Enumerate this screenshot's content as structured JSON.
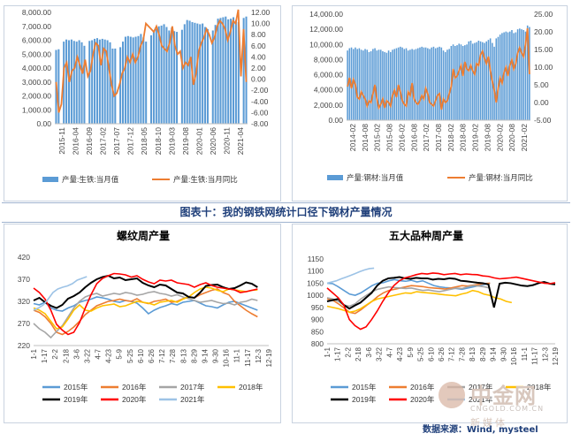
{
  "caption": "图表十：我的钢铁网统计口径下钢材产量情况",
  "source": "数据来源：Wind, mysteel",
  "watermark": {
    "brand": "中金网",
    "url": "CNGOLD.COM.CN",
    "sub": "新媒体"
  },
  "colors": {
    "bar": "#5b9bd5",
    "line": "#ed7d31"
  },
  "chart_data": [
    {
      "type": "bar+line",
      "title": "",
      "x_tick_labels": [
        "2015-11",
        "2016-04",
        "2016-09",
        "2017-02",
        "2017-07",
        "2017-12",
        "2018-05",
        "2018-10",
        "2019-03",
        "2019-08",
        "2020-01",
        "2020-06",
        "2020-11",
        "2021-04"
      ],
      "ylim_left": [
        0,
        8000
      ],
      "yticks_left": [
        "0.00",
        "1,000.00",
        "2,000.00",
        "3,000.00",
        "4,000.00",
        "5,000.00",
        "6,000.00",
        "7,000.00",
        "8,000.00"
      ],
      "ylim_right": [
        -8,
        12
      ],
      "yticks_right": [
        "-8.00",
        "-6.00",
        "-4.00",
        "-2.00",
        "0.00",
        "2.00",
        "4.00",
        "6.00",
        "8.00",
        "10.00",
        "12.00"
      ],
      "series": [
        {
          "name": "产量:生铁:当月值",
          "kind": "bar",
          "axis": "left",
          "values": [
            5300,
            5350,
            0,
            5900,
            6050,
            6000,
            6050,
            5950,
            5900,
            6000,
            5850,
            5600,
            0,
            5950,
            6000,
            6100,
            6150,
            6050,
            6100,
            6050,
            6000,
            5850,
            5400,
            5400,
            0,
            5500,
            5900,
            6250,
            6300,
            6250,
            6200,
            6250,
            6300,
            6450,
            6200,
            5900,
            0,
            6350,
            6600,
            6800,
            7000,
            7050,
            7150,
            6950,
            6700,
            6900,
            6650,
            6600,
            0,
            6750,
            7150,
            7450,
            7400,
            7300,
            7250,
            7200,
            7150,
            7200,
            6950,
            6800,
            0,
            6700,
            7100,
            7550,
            7600,
            7650,
            7700,
            7500,
            7550,
            7650,
            7450,
            7300,
            0,
            7600,
            7700
          ]
        },
        {
          "name": "产量:生铁:当月同比",
          "kind": "line",
          "axis": "right",
          "values": [
            -0.5,
            -6.0,
            -4.5,
            2.0,
            3.0,
            -0.5,
            1.5,
            2.0,
            4.0,
            2.5,
            1.0,
            3.5,
            0.5,
            1.5,
            4.5,
            6.5,
            6.0,
            2.5,
            5.5,
            5.0,
            2.0,
            -1.0,
            -3.0,
            -2.5,
            -1.0,
            1.0,
            2.0,
            4.0,
            3.0,
            4.5,
            3.0,
            4.0,
            6.0,
            7.0,
            10.0,
            9.5,
            9.0,
            8.5,
            9.5,
            8.0,
            6.0,
            5.5,
            5.0,
            6.5,
            9.5,
            6.0,
            4.5,
            5.0,
            2.0,
            3.0,
            2.5,
            4.0,
            -1.0,
            1.0,
            5.0,
            6.5,
            7.5,
            9.0,
            8.0,
            6.5,
            7.5,
            9.5,
            10.5,
            10.0,
            9.0,
            7.0,
            8.5,
            10.5,
            10.0,
            12.5,
            0.5,
            9.0,
            -0.5
          ]
        }
      ]
    },
    {
      "type": "bar+line",
      "title": "",
      "x_tick_labels": [
        "2014-02",
        "2014-08",
        "2015-02",
        "2015-08",
        "2016-02",
        "2016-08",
        "2017-02",
        "2017-08",
        "2018-02",
        "2018-08",
        "2019-02",
        "2019-08",
        "2020-02",
        "2020-08",
        "2021-02"
      ],
      "ylim_left": [
        0,
        14000
      ],
      "yticks_left": [
        "0.00",
        "2,000.00",
        "4,000.00",
        "6,000.00",
        "8,000.00",
        "10,000.00",
        "12,000.00",
        "14,000.00"
      ],
      "ylim_right": [
        -5,
        25
      ],
      "yticks_right": [
        "-5.00",
        "0.00",
        "5.00",
        "10.00",
        "15.00",
        "20.00",
        "25.00"
      ],
      "series": [
        {
          "name": "产量:钢材:当月值",
          "kind": "bar",
          "axis": "left",
          "values": [
            9200,
            9500,
            9600,
            9400,
            9600,
            9400,
            9500,
            9300,
            9200,
            9400,
            9300,
            9000,
            9100,
            9400,
            9500,
            9200,
            9300,
            9300,
            9100,
            9000,
            8900,
            9200,
            9000,
            9300,
            9400,
            9500,
            9600,
            9700,
            9600,
            9400,
            9500,
            9200,
            9300,
            9400,
            9300,
            9400,
            9500,
            9600,
            9700,
            9600,
            9600,
            9500,
            9400,
            9600,
            9700,
            9500,
            9600,
            9700,
            9600,
            9200,
            9000,
            9300,
            9400,
            9800,
            10000,
            9800,
            9900,
            10100,
            10000,
            9800,
            9900,
            10000,
            10400,
            10500,
            10100,
            10200,
            10300,
            10500,
            10400,
            10300,
            10200,
            10400,
            10600,
            10800,
            10200,
            9700,
            10800,
            11000,
            11300,
            11500,
            11600,
            11700,
            11600,
            11700,
            11900,
            11500,
            11600,
            12000,
            12100,
            12000,
            11900,
            11700,
            12500,
            12300
          ]
        },
        {
          "name": "产量:钢材:当月同比",
          "kind": "line",
          "axis": "right",
          "values": [
            4.5,
            7.0,
            4.0,
            6.5,
            5.0,
            1.5,
            1.0,
            3.0,
            2.0,
            1.0,
            -1.0,
            0.5,
            0.0,
            2.5,
            5.0,
            1.0,
            -1.5,
            -0.5,
            1.0,
            -1.5,
            0.5,
            0.0,
            -1.0,
            2.0,
            3.5,
            1.5,
            5.0,
            3.0,
            0.5,
            -0.5,
            -1.0,
            3.0,
            2.0,
            5.5,
            1.0,
            0.0,
            -0.5,
            0.5,
            2.0,
            1.0,
            4.0,
            2.5,
            0.0,
            -0.5,
            -1.0,
            0.5,
            2.0,
            2.5,
            -2.0,
            1.0,
            0.0,
            0.5,
            2.5,
            4.5,
            9.5,
            7.0,
            7.5,
            9.0,
            10.5,
            7.5,
            11.5,
            9.5,
            9.0,
            10.5,
            9.0,
            8.0,
            11.0,
            10.5,
            13.5,
            14.5,
            12.5,
            11.0,
            13.0,
            9.0,
            6.0,
            3.5,
            0.0,
            4.0,
            7.0,
            5.5,
            8.5,
            10.0,
            7.5,
            10.5,
            12.0,
            9.5,
            11.0,
            14.0,
            15.5,
            14.0,
            13.0,
            16.5,
            21.0,
            8.0
          ]
        }
      ]
    },
    {
      "type": "line",
      "title": "螺纹周产量",
      "x_tick_labels": [
        "1-1",
        "1-17",
        "2-2",
        "2-18",
        "3-6",
        "3-22",
        "4-7",
        "4-23",
        "5-9",
        "5-25",
        "6-10",
        "6-26",
        "7-12",
        "7-28",
        "8-13",
        "8-29",
        "9-14",
        "9-30",
        "10-16",
        "11-1",
        "11-17",
        "12-3",
        "12-19"
      ],
      "ylim": [
        220,
        420
      ],
      "yticks": [
        "220",
        "270",
        "320",
        "370",
        "420"
      ],
      "series": [
        {
          "name": "2015年",
          "color": "#5b9bd5",
          "values": [
            315,
            312,
            318,
            305,
            300,
            298,
            305,
            310,
            318,
            322,
            325,
            330,
            328,
            325,
            320,
            318,
            322,
            320,
            316,
            305,
            292,
            300,
            306,
            310,
            315,
            312,
            318,
            320,
            322,
            316,
            310,
            308,
            305,
            312,
            318,
            320,
            315,
            310,
            305,
            300
          ]
        },
        {
          "name": "2016年",
          "color": "#ed7d31",
          "values": [
            300,
            295,
            285,
            270,
            250,
            245,
            252,
            262,
            275,
            290,
            300,
            310,
            315,
            320,
            322,
            325,
            322,
            320,
            326,
            318,
            315,
            320,
            322,
            325,
            318,
            320,
            326,
            330,
            328,
            335,
            340,
            345,
            348,
            340,
            335,
            320,
            310,
            300,
            292,
            285
          ]
        },
        {
          "name": "2017年",
          "color": "#a5a5a5",
          "values": [
            270,
            258,
            250,
            238,
            252,
            265,
            285,
            305,
            320,
            330,
            335,
            338,
            332,
            335,
            338,
            336,
            340,
            338,
            334,
            336,
            340,
            342,
            338,
            336,
            332,
            335,
            330,
            326,
            322,
            318,
            320,
            322,
            318,
            315,
            316,
            312,
            318,
            320,
            325,
            322
          ]
        },
        {
          "name": "2018年",
          "color": "#ffc000",
          "values": [
            305,
            300,
            292,
            275,
            258,
            262,
            280,
            300,
            312,
            300,
            298,
            305,
            310,
            312,
            314,
            308,
            310,
            315,
            320,
            318,
            316,
            312,
            318,
            320,
            322,
            318,
            325,
            330,
            340,
            348,
            352,
            350,
            345,
            342,
            348,
            346,
            344,
            342,
            345,
            346
          ]
        },
        {
          "name": "2019年",
          "color": "#000000",
          "values": [
            322,
            328,
            318,
            310,
            305,
            312,
            326,
            332,
            340,
            352,
            362,
            370,
            375,
            378,
            372,
            374,
            368,
            370,
            372,
            362,
            356,
            352,
            358,
            356,
            348,
            340,
            338,
            330,
            328,
            340,
            355,
            357,
            358,
            352,
            348,
            350,
            356,
            363,
            360,
            352
          ]
        },
        {
          "name": "2020年",
          "color": "#ff0000",
          "values": [
            350,
            340,
            325,
            300,
            268,
            255,
            245,
            250,
            272,
            305,
            335,
            360,
            372,
            378,
            383,
            382,
            380,
            375,
            378,
            370,
            364,
            360,
            368,
            366,
            368,
            362,
            360,
            358,
            352,
            358,
            362,
            356,
            352,
            350,
            348,
            346,
            340,
            342,
            345,
            348
          ]
        },
        {
          "name": "2021年",
          "color": "#9dc3e6",
          "values": [
            300,
            305,
            312,
            325,
            340,
            348,
            352,
            355,
            360,
            368,
            372,
            376
          ]
        }
      ]
    },
    {
      "type": "line",
      "title": "五大品种周产量",
      "x_tick_labels": [
        "1-1",
        "1-17",
        "2-2",
        "2-18",
        "3-6",
        "3-22",
        "4-7",
        "4-23",
        "5-9",
        "5-25",
        "6-10",
        "6-26",
        "7-12",
        "7-28",
        "8-13",
        "8-29",
        "9-14",
        "9-30",
        "10-16",
        "11-1",
        "11-17",
        "12-3",
        "12-19"
      ],
      "ylim": [
        800,
        1150
      ],
      "yticks": [
        "800",
        "850",
        "900",
        "950",
        "1000",
        "1050",
        "1100",
        "1150"
      ],
      "series": [
        {
          "name": "2015年",
          "color": "#5b9bd5",
          "values": [
            1050,
            1048,
            1035,
            1020,
            1005,
            1000,
            1010,
            1025,
            1040,
            1050,
            1052,
            1060,
            1065,
            1060,
            1058,
            1062,
            1055,
            1060,
            1050,
            1040,
            1035,
            1032,
            1030,
            1028,
            1025,
            1030,
            1035,
            1040,
            1045,
            1050
          ]
        },
        {
          "name": "2016年",
          "color": "#ed7d31",
          "values": [
            985,
            980,
            965,
            948,
            930,
            925,
            940,
            958,
            975,
            995,
            1010,
            1020,
            1025,
            1030,
            1035,
            1040,
            1038,
            1036,
            1032,
            1030,
            1028,
            1026,
            1030,
            1035,
            1040,
            1038,
            1042,
            1045,
            1048,
            1050
          ]
        },
        {
          "name": "2017年",
          "color": "#a5a5a5",
          "values": [
            990,
            985,
            975,
            960,
            955,
            965,
            985,
            1000,
            1015,
            1025,
            1030,
            1035,
            1032,
            1030,
            1028,
            1030,
            1025,
            1020,
            1022,
            1018,
            1015,
            1020,
            1025,
            1030,
            1028,
            1035,
            1040,
            1038,
            1035,
            1030
          ]
        },
        {
          "name": "2018年",
          "color": "#ffc000",
          "values": [
            955,
            950,
            945,
            938,
            930,
            935,
            945,
            960,
            975,
            985,
            990,
            995,
            1000,
            1005,
            1010,
            1008,
            1015,
            1012,
            1010,
            1008,
            1005,
            1002,
            1000,
            998,
            1005,
            1010,
            1020,
            1015,
            1005,
            1000,
            990,
            985,
            975,
            970
          ]
        },
        {
          "name": "2019年",
          "color": "#000000",
          "values": [
            975,
            980,
            985,
            960,
            945,
            958,
            970,
            990,
            1010,
            1040,
            1060,
            1070,
            1072,
            1075,
            1070,
            1068,
            1072,
            1070,
            1070,
            1065,
            1068,
            1066,
            1070,
            1068,
            1060,
            1058,
            1055,
            1052,
            1050,
            1045,
            950,
            1048,
            1052,
            1050,
            1045,
            1040,
            1038,
            1042,
            1050,
            1055,
            1048,
            1045
          ]
        },
        {
          "name": "2020年",
          "color": "#ff0000",
          "values": [
            1030,
            1010,
            990,
            960,
            900,
            875,
            860,
            870,
            900,
            935,
            975,
            1010,
            1040,
            1060,
            1072,
            1078,
            1085,
            1090,
            1088,
            1092,
            1090,
            1085,
            1088,
            1090,
            1085,
            1088,
            1086,
            1085,
            1080,
            1078,
            1072,
            1068,
            1070,
            1072,
            1075,
            1070,
            1065,
            1060,
            1055,
            1050,
            1048,
            1052
          ]
        },
        {
          "name": "2021年",
          "color": "#9dc3e6",
          "values": [
            1050,
            1055,
            1060,
            1068,
            1075,
            1082,
            1090,
            1098,
            1105,
            1110,
            1112
          ]
        }
      ]
    }
  ]
}
